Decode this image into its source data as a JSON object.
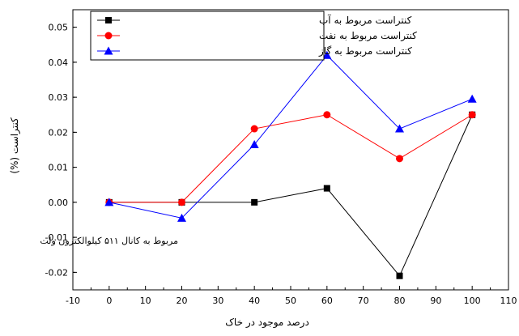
{
  "chart_data": {
    "type": "line",
    "title": "",
    "xlabel": "درصد موجود در خاک",
    "ylabel": "کنتراست (%)",
    "xlim": [
      -10,
      110
    ],
    "ylim": [
      -0.025,
      0.055
    ],
    "x_ticks": [
      -10,
      0,
      10,
      20,
      30,
      40,
      50,
      60,
      70,
      80,
      90,
      100,
      110
    ],
    "y_ticks": [
      -0.02,
      -0.01,
      0.0,
      0.01,
      0.02,
      0.03,
      0.04,
      0.05
    ],
    "x_tick_labels": [
      "-10",
      "0",
      "10",
      "20",
      "30",
      "40",
      "50",
      "60",
      "70",
      "80",
      "90",
      "100",
      "110"
    ],
    "y_tick_labels": [
      "-0.02",
      "-0.01",
      "0.00",
      "0.01",
      "0.02",
      "0.03",
      "0.04",
      "0.05"
    ],
    "grid": false,
    "legend_position": "top-right",
    "annotation": "مربوط به کانال ۵۱۱ کیلوالکترون ولت",
    "series": [
      {
        "name": "کنتراست مربوط به آب",
        "color": "#000000",
        "marker": "square",
        "x": [
          0,
          20,
          40,
          60,
          80,
          100
        ],
        "y": [
          0.0,
          0.0,
          0.0,
          0.004,
          -0.021,
          0.025
        ]
      },
      {
        "name": "کنتراست مربوط به نفت",
        "color": "#ff0000",
        "marker": "circle",
        "x": [
          0,
          20,
          40,
          60,
          80,
          100
        ],
        "y": [
          0.0,
          0.0,
          0.021,
          0.025,
          0.0125,
          0.025
        ]
      },
      {
        "name": "کنتراست مربوط به گاز",
        "color": "#0000ff",
        "marker": "triangle",
        "x": [
          0,
          20,
          40,
          60,
          80,
          100
        ],
        "y": [
          0.0,
          -0.0045,
          0.0165,
          0.042,
          0.021,
          0.0295
        ]
      }
    ]
  }
}
